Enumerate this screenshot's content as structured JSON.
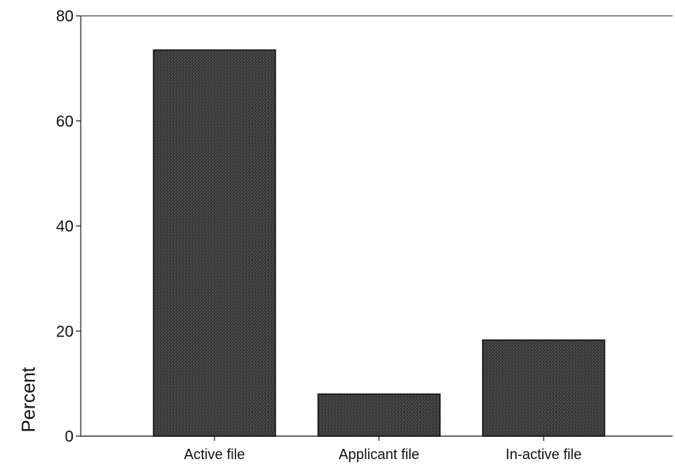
{
  "chart_data": {
    "type": "bar",
    "categories": [
      "Active file",
      "Applicant file",
      "In-active file"
    ],
    "values": [
      73.5,
      8.0,
      18.3
    ],
    "title": "",
    "xlabel": "",
    "ylabel": "Percent",
    "ylim": [
      0,
      80
    ],
    "yticks": [
      0,
      20,
      40,
      60,
      80
    ],
    "grid": false,
    "legend": "none",
    "colors": {
      "bar_fill": "#3a3a3a",
      "bar_stroke": "#111111",
      "axis": "#222222"
    }
  }
}
